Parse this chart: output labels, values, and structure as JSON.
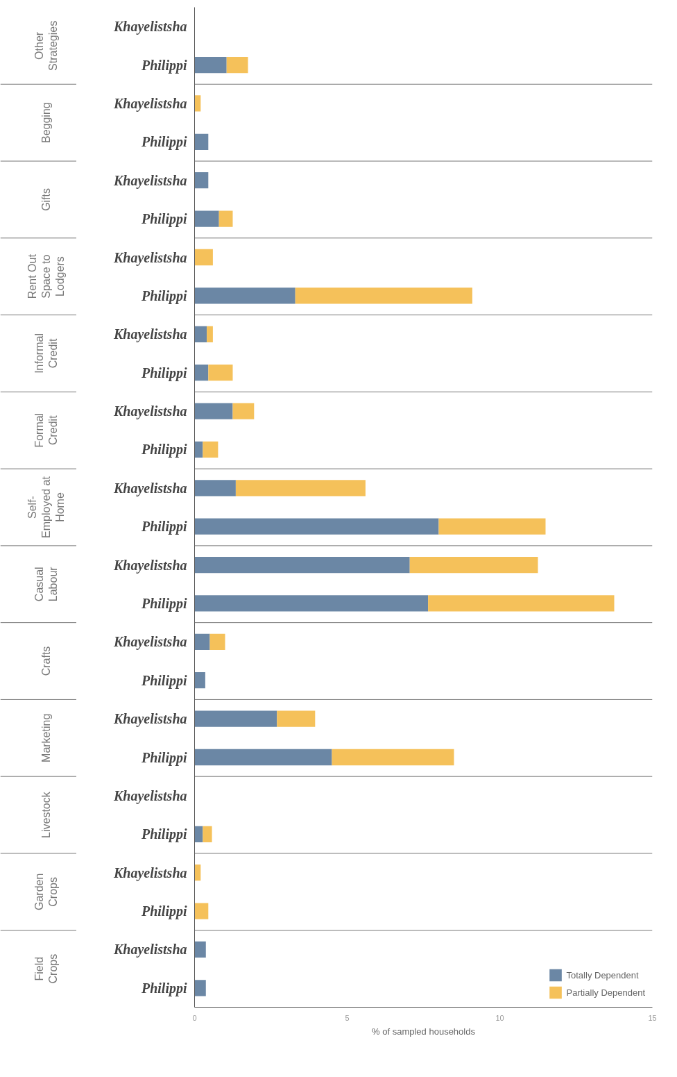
{
  "chart_data": {
    "type": "bar",
    "orientation": "horizontal",
    "xlabel": "% of sampled households",
    "categories": [
      "Khayelistsha",
      "Philippi",
      "Khayelistsha",
      "Philippi",
      "Khayelistsha",
      "Philippi",
      "Khayelistsha",
      "Philippi",
      "Khayelistsha",
      "Philippi",
      "Khayelistsha",
      "Philippi",
      "Khayelistsha",
      "Philippi",
      "Khayelistsha",
      "Philippi",
      "Khayelistsha",
      "Philippi",
      "Khayelistsha",
      "Philippi",
      "Khayelistsha",
      "Philippi",
      "Khayelistsha",
      "Philippi",
      "Khayelistsha",
      "Philippi"
    ],
    "annotations": [
      "Other\nStrategies",
      "Begging",
      "Gifts",
      "Rent Out\nSpace to\nLodgers",
      "Informal\nCredit",
      "Formal\nCredit",
      "Self-\nEmployed at\nHome",
      "Casual\nLabour",
      "Crafts",
      "Marketing",
      "Livestock",
      "Garden\nCrops",
      "Field\nCrops"
    ],
    "series": [
      {
        "name": "Totally Dependent",
        "color": "#6b87a5",
        "values": [
          0,
          1.05,
          0,
          0.45,
          0.45,
          0.8,
          0,
          3.3,
          0.4,
          0.45,
          1.25,
          0.27,
          1.35,
          8.0,
          7.05,
          7.65,
          0.5,
          0.35,
          2.7,
          4.5,
          0,
          0.27,
          0,
          0,
          0.37,
          0.37
        ]
      },
      {
        "name": "Partially Dependent",
        "color": "#f5c15a",
        "values": [
          0,
          0.7,
          0.2,
          0,
          0,
          0.45,
          0.6,
          5.8,
          0.2,
          0.8,
          0.7,
          0.5,
          4.25,
          3.5,
          4.2,
          6.1,
          0.5,
          0,
          1.25,
          4.0,
          0,
          0.3,
          0.2,
          0.45,
          0,
          0
        ]
      }
    ],
    "stacked": true,
    "xlim": [
      0,
      15
    ],
    "xticks": [
      0,
      5,
      10,
      15
    ],
    "grid": false,
    "legend": "bottom right"
  }
}
